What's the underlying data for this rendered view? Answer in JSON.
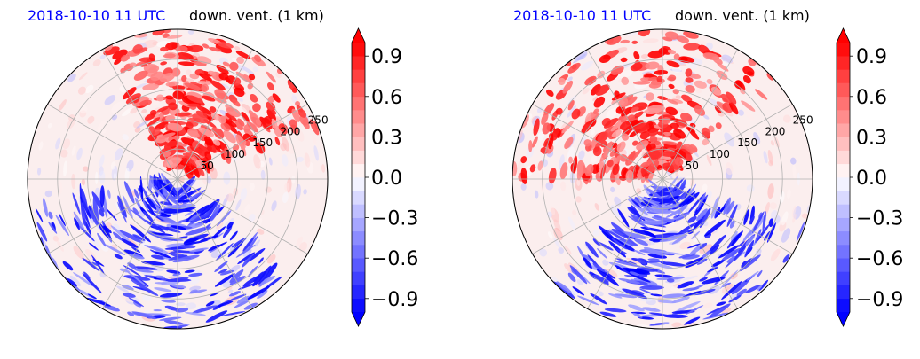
{
  "chart_data": [
    {
      "type": "heatmap",
      "projection": "polar",
      "title_left": "2018-10-10 11 UTC",
      "title_right": "down. vent. (1 km)",
      "radial_ticks": [
        50,
        100,
        150,
        200,
        250
      ],
      "rmax": 250,
      "angular_gridlines_deg": [
        0,
        30,
        60,
        90,
        120,
        150,
        180,
        210,
        240,
        270,
        300,
        330
      ],
      "grid": true,
      "colorbar": {
        "position": "right",
        "vmin": -1.0,
        "vmax": 1.0,
        "extend": "both",
        "ticks": [
          0.9,
          0.6,
          0.3,
          0.0,
          -0.3,
          -0.6,
          -0.9
        ],
        "tick_labels": [
          "0.9",
          "0.6",
          "0.3",
          "0.0",
          "−0.3",
          "−0.6",
          "−0.9"
        ],
        "colormap": "bwr",
        "low_color": "#0000ff",
        "mid_color": "#ffffff",
        "high_color": "#ff0000"
      },
      "pattern": {
        "positive_sector_deg": [
          20,
          120
        ],
        "negative_sector_deg": [
          190,
          320
        ],
        "seed": 7
      }
    },
    {
      "type": "heatmap",
      "projection": "polar",
      "title_left": "2018-10-10 11 UTC",
      "title_right": "down. vent. (1 km)",
      "radial_ticks": [
        50,
        100,
        150,
        200,
        250
      ],
      "rmax": 250,
      "angular_gridlines_deg": [
        0,
        30,
        60,
        90,
        120,
        150,
        180,
        210,
        240,
        270,
        300,
        330
      ],
      "grid": true,
      "colorbar": {
        "position": "right",
        "vmin": -1.0,
        "vmax": 1.0,
        "extend": "both",
        "ticks": [
          0.9,
          0.6,
          0.3,
          0.0,
          -0.3,
          -0.6,
          -0.9
        ],
        "tick_labels": [
          "0.9",
          "0.6",
          "0.3",
          "0.0",
          "−0.3",
          "−0.6",
          "−0.9"
        ],
        "colormap": "bwr",
        "low_color": "#0000ff",
        "mid_color": "#ffffff",
        "high_color": "#ff0000"
      },
      "pattern": {
        "positive_sector_deg": [
          40,
          180
        ],
        "negative_sector_deg": [
          220,
          340
        ],
        "seed": 13
      }
    }
  ]
}
